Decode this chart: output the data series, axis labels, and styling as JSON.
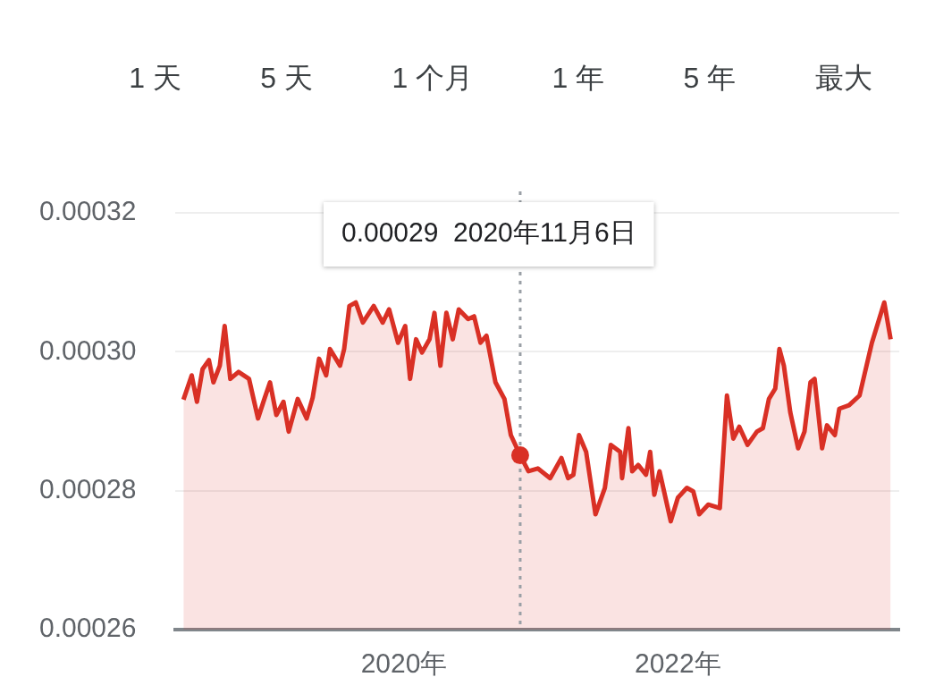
{
  "chart_data": {
    "type": "area",
    "x": [
      "2018-05-22",
      "2018-06-13",
      "2018-06-27",
      "2018-07-12",
      "2018-07-29",
      "2018-08-10",
      "2018-08-27",
      "2018-09-09",
      "2018-09-24",
      "2018-10-16",
      "2018-11-13",
      "2018-12-07",
      "2018-12-24",
      "2019-01-08",
      "2019-01-25",
      "2019-02-13",
      "2019-02-27",
      "2019-03-23",
      "2019-04-16",
      "2019-05-02",
      "2019-05-19",
      "2019-06-07",
      "2019-06-17",
      "2019-07-14",
      "2019-07-25",
      "2019-08-08",
      "2019-08-25",
      "2019-09-13",
      "2019-10-12",
      "2019-11-05",
      "2019-11-22",
      "2019-12-16",
      "2020-01-04",
      "2020-01-17",
      "2020-02-02",
      "2020-02-18",
      "2020-03-09",
      "2020-03-22",
      "2020-04-07",
      "2020-04-23",
      "2020-05-10",
      "2020-05-26",
      "2020-06-20",
      "2020-07-06",
      "2020-07-23",
      "2020-08-08",
      "2020-09-01",
      "2020-09-25",
      "2020-10-12",
      "2020-11-06",
      "2020-11-28",
      "2020-12-23",
      "2021-01-25",
      "2021-02-24",
      "2021-03-14",
      "2021-03-28",
      "2021-04-12",
      "2021-05-01",
      "2021-05-26",
      "2021-06-20",
      "2021-07-06",
      "2021-07-31",
      "2021-08-05",
      "2021-08-22",
      "2021-09-01",
      "2021-09-17",
      "2021-10-08",
      "2021-10-19",
      "2021-10-30",
      "2021-11-13",
      "2021-12-13",
      "2022-01-01",
      "2022-01-25",
      "2022-02-11",
      "2022-02-27",
      "2022-03-23",
      "2022-04-23",
      "2022-05-12",
      "2022-05-29",
      "2022-06-14",
      "2022-07-06",
      "2022-07-31",
      "2022-08-16",
      "2022-09-01",
      "2022-09-18",
      "2022-09-29",
      "2022-10-11",
      "2022-10-28",
      "2022-11-18",
      "2022-12-05",
      "2022-12-21",
      "2023-01-01",
      "2023-01-21",
      "2023-02-03",
      "2023-02-24",
      "2023-03-08",
      "2023-04-03",
      "2023-05-01",
      "2023-06-03",
      "2023-07-06",
      "2023-07-23"
    ],
    "series": [
      {
        "color": "#d93025",
        "values": [
          0.0002931,
          0.0002966,
          0.0002928,
          0.0002975,
          0.0002988,
          0.0002956,
          0.000298,
          0.0003037,
          0.0002961,
          0.0002971,
          0.0002961,
          0.0002904,
          0.0002932,
          0.0002956,
          0.0002909,
          0.0002928,
          0.0002885,
          0.0002932,
          0.0002904,
          0.0002934,
          0.000299,
          0.0002966,
          0.0003004,
          0.000298,
          0.0003004,
          0.0003066,
          0.0003071,
          0.0003042,
          0.0003066,
          0.0003042,
          0.0003061,
          0.0003013,
          0.0003037,
          0.0002961,
          0.0003018,
          0.0002999,
          0.0003018,
          0.0003056,
          0.000298,
          0.0003056,
          0.0003018,
          0.0003061,
          0.0003047,
          0.0003051,
          0.0003013,
          0.0003023,
          0.0002956,
          0.0002932,
          0.000288,
          0.0002851,
          0.0002828,
          0.0002832,
          0.0002818,
          0.0002847,
          0.0002818,
          0.0002823,
          0.000288,
          0.0002856,
          0.0002766,
          0.0002804,
          0.0002866,
          0.0002856,
          0.0002818,
          0.000289,
          0.0002828,
          0.0002837,
          0.0002823,
          0.0002856,
          0.0002794,
          0.0002828,
          0.0002756,
          0.000279,
          0.0002804,
          0.0002799,
          0.0002766,
          0.000278,
          0.0002775,
          0.0002937,
          0.0002875,
          0.0002892,
          0.0002866,
          0.0002885,
          0.000289,
          0.0002932,
          0.0002947,
          0.0003004,
          0.000298,
          0.0002913,
          0.0002861,
          0.0002885,
          0.0002956,
          0.0002961,
          0.0002861,
          0.0002894,
          0.000288,
          0.0002918,
          0.0002923,
          0.0002937,
          0.0003013,
          0.0003071,
          0.0003018
        ]
      }
    ],
    "xlim": [
      "2018-05-01",
      "2023-08-15"
    ],
    "xticks": [
      {
        "value": "2020-01-01",
        "label": "2020年"
      },
      {
        "value": "2022-01-01",
        "label": "2022年"
      }
    ],
    "ylim": [
      0.00026,
      0.00032
    ],
    "yticks": [
      0.00032,
      {
        "value": 0.0003,
        "label": "0.00030"
      },
      0.00028,
      0.00026
    ],
    "grid": "y",
    "legend": false,
    "marker": "none",
    "line_style": "solid",
    "ref_lines": [
      {
        "axis": "x",
        "value": "2020-11-06",
        "color": "#9aa0a6",
        "line_style": "dotted"
      }
    ],
    "annotations": [
      "1 天",
      "5 天",
      "1 个月",
      "1 年",
      "5 年",
      "最大",
      "0.00029  2020年11月6日"
    ]
  }
}
